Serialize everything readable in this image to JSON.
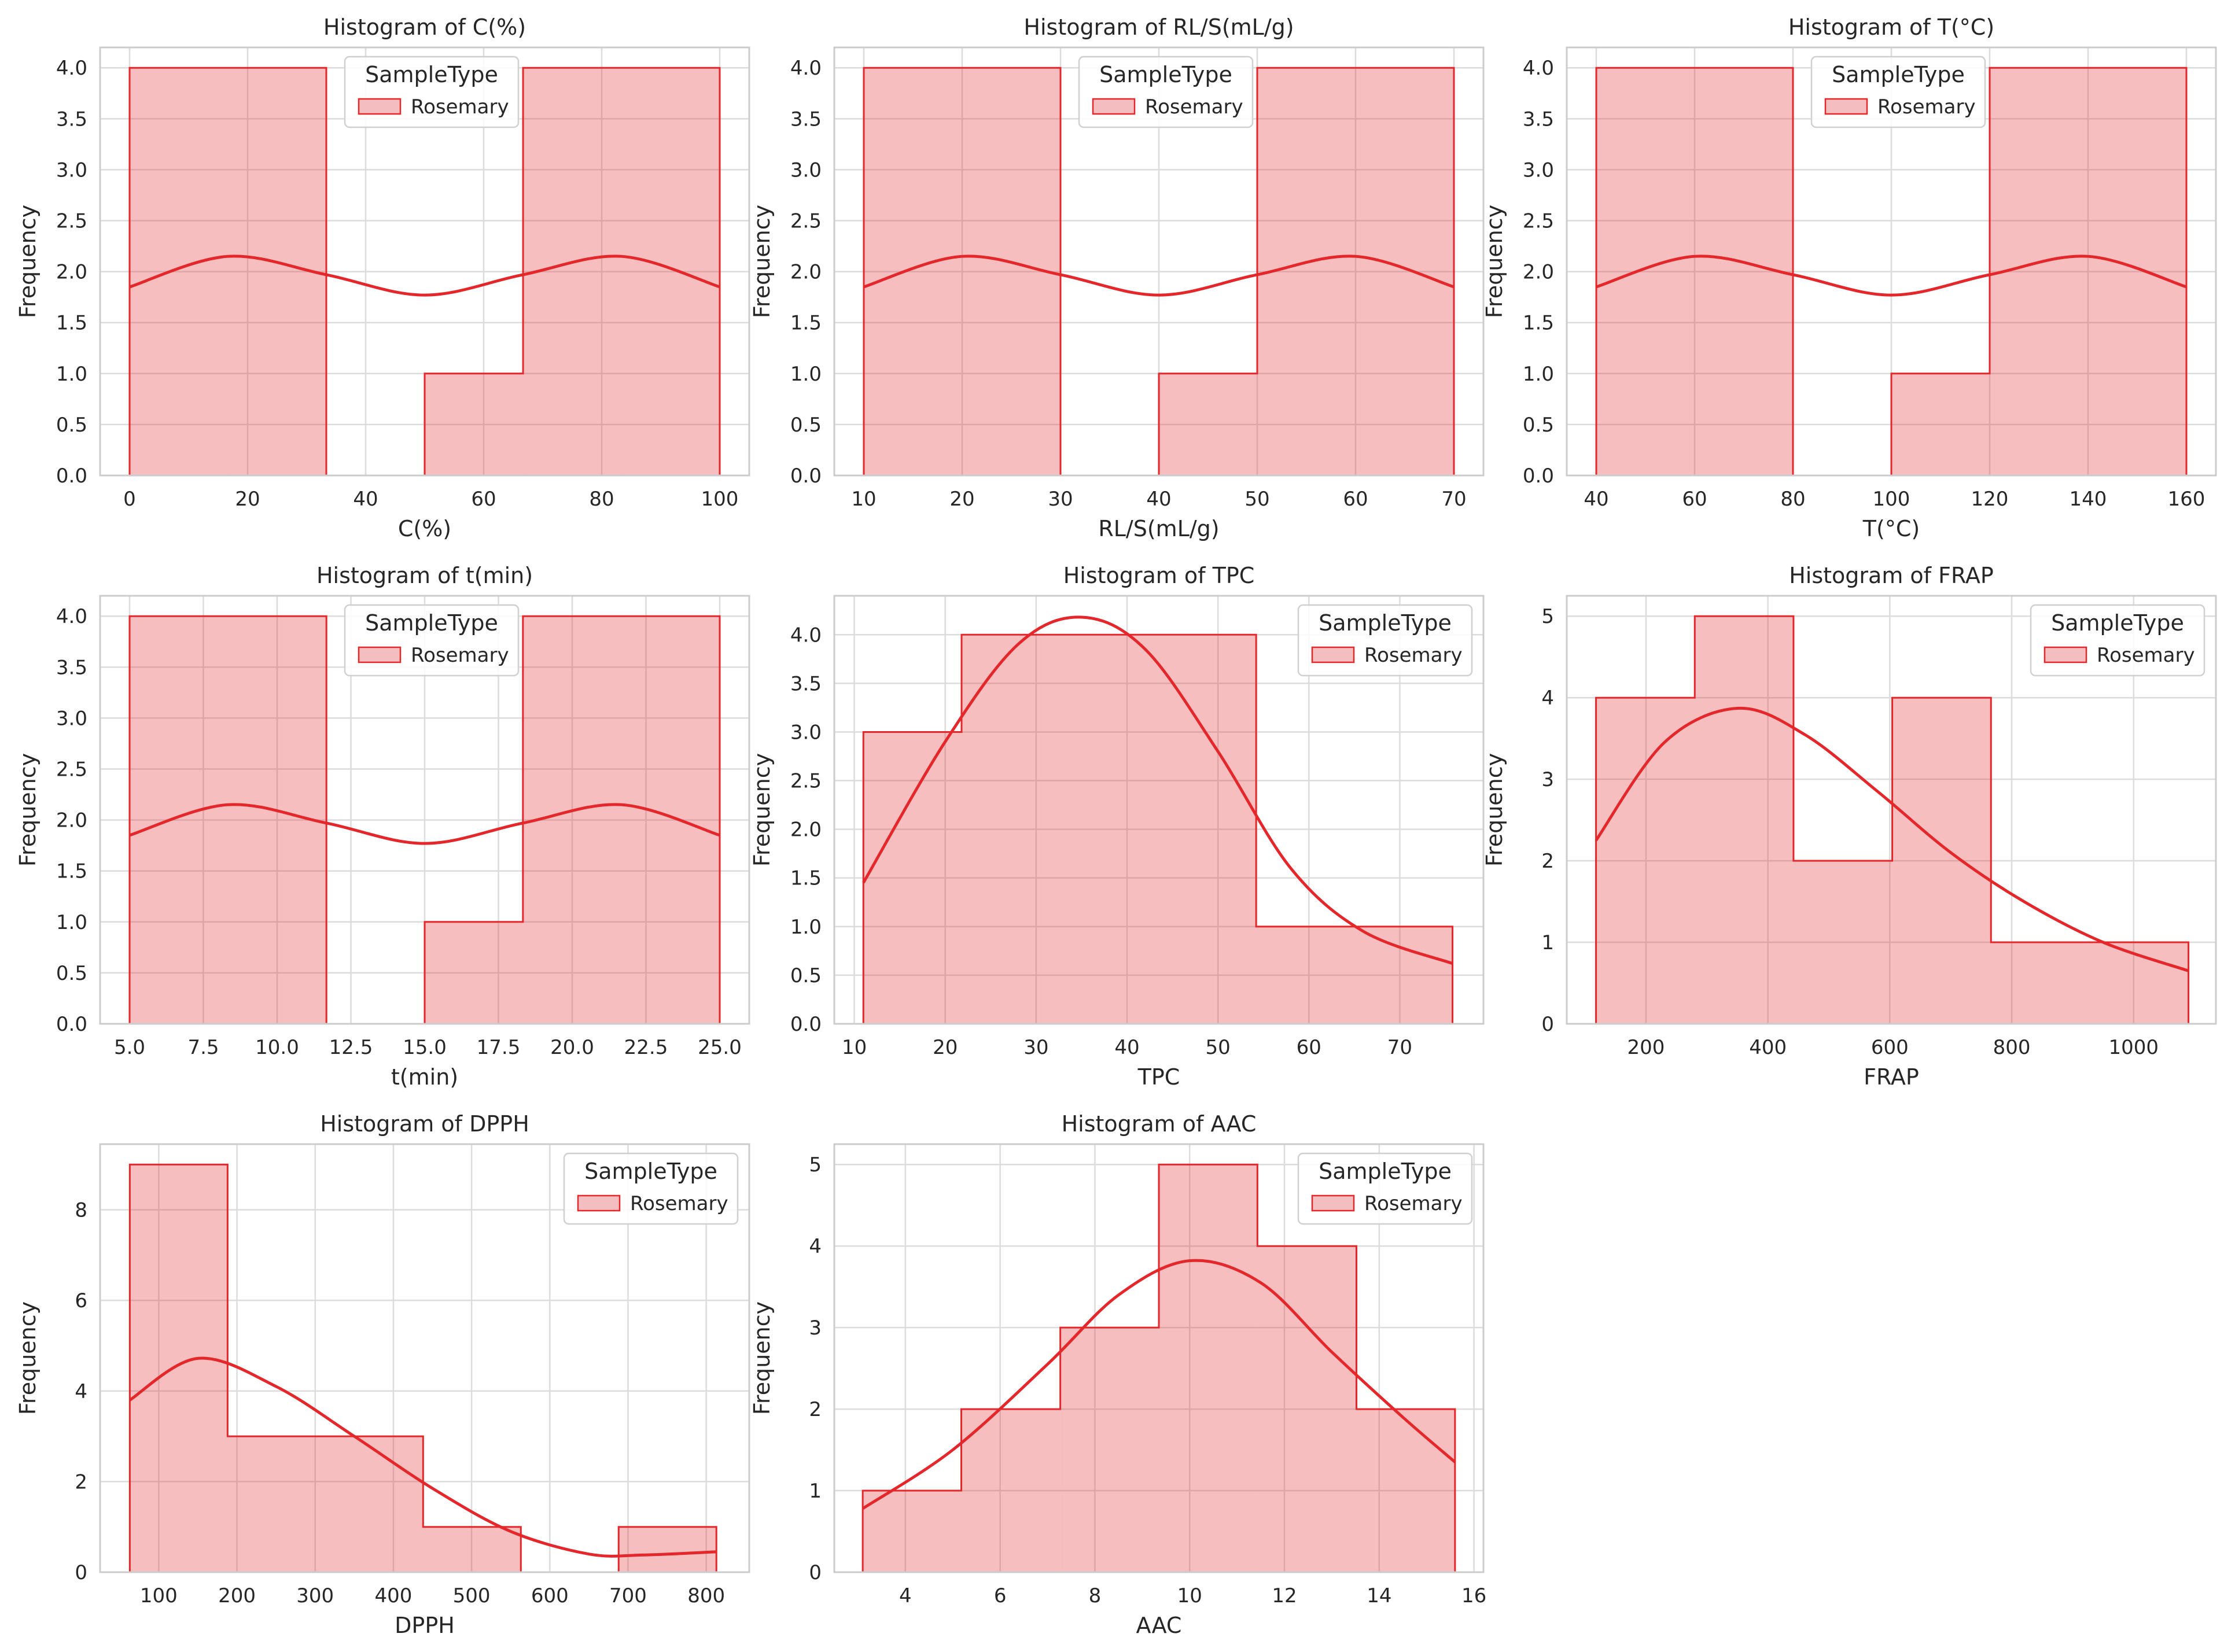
{
  "figure": {
    "rows": 3,
    "cols": 3,
    "background": "#ffffff"
  },
  "style": {
    "bar_fill": "#f4bdc0",
    "bar_edge": "#e3272b",
    "kde_color": "#e3272b",
    "grid_color": "#dcdcdc",
    "spine_color": "#cccccc",
    "text_color": "#262626"
  },
  "chart_data": [
    {
      "type": "bar",
      "title": "Histogram of C(%)",
      "xlabel": "C(%)",
      "ylabel": "Frequency",
      "legend": {
        "title": "SampleType",
        "entries": [
          "Rosemary"
        ],
        "placement": "top-center"
      },
      "xlim": [
        -5,
        105
      ],
      "xticks": [
        0,
        20,
        40,
        60,
        80,
        100
      ],
      "xtick_labels": [
        "0",
        "20",
        "40",
        "60",
        "80",
        "100"
      ],
      "ylim": [
        0,
        4.2
      ],
      "yticks": [
        0,
        0.5,
        1,
        1.5,
        2,
        2.5,
        3,
        3.5,
        4
      ],
      "ytick_labels": [
        "0.0",
        "0.5",
        "1.0",
        "1.5",
        "2.0",
        "2.5",
        "3.0",
        "3.5",
        "4.0"
      ],
      "bin_edges": [
        0,
        16.67,
        33.33,
        50,
        66.67,
        83.33,
        100
      ],
      "counts": [
        4,
        4,
        0,
        1,
        4,
        4
      ],
      "kde": {
        "x": [
          0,
          16.67,
          33.33,
          50,
          66.67,
          83.33,
          100
        ],
        "y": [
          1.85,
          2.15,
          1.97,
          1.77,
          1.97,
          2.15,
          1.85
        ]
      }
    },
    {
      "type": "bar",
      "title": "Histogram of RL/S(mL/g)",
      "xlabel": "RL/S(mL/g)",
      "ylabel": "Frequency",
      "legend": {
        "title": "SampleType",
        "entries": [
          "Rosemary"
        ],
        "placement": "top-center"
      },
      "xlim": [
        7,
        73
      ],
      "xticks": [
        10,
        20,
        30,
        40,
        50,
        60,
        70
      ],
      "xtick_labels": [
        "10",
        "20",
        "30",
        "40",
        "50",
        "60",
        "70"
      ],
      "ylim": [
        0,
        4.2
      ],
      "yticks": [
        0,
        0.5,
        1,
        1.5,
        2,
        2.5,
        3,
        3.5,
        4
      ],
      "ytick_labels": [
        "0.0",
        "0.5",
        "1.0",
        "1.5",
        "2.0",
        "2.5",
        "3.0",
        "3.5",
        "4.0"
      ],
      "bin_edges": [
        10,
        20,
        30,
        40,
        50,
        60,
        70
      ],
      "counts": [
        4,
        4,
        0,
        1,
        4,
        4
      ],
      "kde": {
        "x": [
          10,
          20,
          30,
          40,
          50,
          60,
          70
        ],
        "y": [
          1.85,
          2.15,
          1.97,
          1.77,
          1.97,
          2.15,
          1.85
        ]
      }
    },
    {
      "type": "bar",
      "title": "Histogram of T(°C)",
      "xlabel": "T(°C)",
      "ylabel": "Frequency",
      "legend": {
        "title": "SampleType",
        "entries": [
          "Rosemary"
        ],
        "placement": "top-center"
      },
      "xlim": [
        34,
        166
      ],
      "xticks": [
        40,
        60,
        80,
        100,
        120,
        140,
        160
      ],
      "xtick_labels": [
        "40",
        "60",
        "80",
        "100",
        "120",
        "140",
        "160"
      ],
      "ylim": [
        0,
        4.2
      ],
      "yticks": [
        0,
        0.5,
        1,
        1.5,
        2,
        2.5,
        3,
        3.5,
        4
      ],
      "ytick_labels": [
        "0.0",
        "0.5",
        "1.0",
        "1.5",
        "2.0",
        "2.5",
        "3.0",
        "3.5",
        "4.0"
      ],
      "bin_edges": [
        40,
        60,
        80,
        100,
        120,
        140,
        160
      ],
      "counts": [
        4,
        4,
        0,
        1,
        4,
        4
      ],
      "kde": {
        "x": [
          40,
          60,
          80,
          100,
          120,
          140,
          160
        ],
        "y": [
          1.85,
          2.15,
          1.97,
          1.77,
          1.97,
          2.15,
          1.85
        ]
      }
    },
    {
      "type": "bar",
      "title": "Histogram of t(min)",
      "xlabel": "t(min)",
      "ylabel": "Frequency",
      "legend": {
        "title": "SampleType",
        "entries": [
          "Rosemary"
        ],
        "placement": "top-center"
      },
      "xlim": [
        4,
        26
      ],
      "xticks": [
        5,
        7.5,
        10,
        12.5,
        15,
        17.5,
        20,
        22.5,
        25
      ],
      "xtick_labels": [
        "5.0",
        "7.5",
        "10.0",
        "12.5",
        "15.0",
        "17.5",
        "20.0",
        "22.5",
        "25.0"
      ],
      "ylim": [
        0,
        4.2
      ],
      "yticks": [
        0,
        0.5,
        1,
        1.5,
        2,
        2.5,
        3,
        3.5,
        4
      ],
      "ytick_labels": [
        "0.0",
        "0.5",
        "1.0",
        "1.5",
        "2.0",
        "2.5",
        "3.0",
        "3.5",
        "4.0"
      ],
      "bin_edges": [
        5,
        8.33,
        11.67,
        15,
        18.33,
        21.67,
        25
      ],
      "counts": [
        4,
        4,
        0,
        1,
        4,
        4
      ],
      "kde": {
        "x": [
          5,
          8.33,
          11.67,
          15,
          18.33,
          21.67,
          25
        ],
        "y": [
          1.85,
          2.15,
          1.97,
          1.77,
          1.97,
          2.15,
          1.85
        ]
      }
    },
    {
      "type": "bar",
      "title": "Histogram of TPC",
      "xlabel": "TPC",
      "ylabel": "Frequency",
      "legend": {
        "title": "SampleType",
        "entries": [
          "Rosemary"
        ],
        "placement": "top-right"
      },
      "xlim": [
        7.8,
        79.2
      ],
      "xticks": [
        10,
        20,
        30,
        40,
        50,
        60,
        70
      ],
      "xtick_labels": [
        "10",
        "20",
        "30",
        "40",
        "50",
        "60",
        "70"
      ],
      "ylim": [
        0,
        4.4
      ],
      "yticks": [
        0,
        0.5,
        1,
        1.5,
        2,
        2.5,
        3,
        3.5,
        4
      ],
      "ytick_labels": [
        "0.0",
        "0.5",
        "1.0",
        "1.5",
        "2.0",
        "2.5",
        "3.0",
        "3.5",
        "4.0"
      ],
      "bin_edges": [
        11.0,
        21.8,
        32.6,
        43.4,
        54.2,
        65.0,
        75.8
      ],
      "counts": [
        3,
        4,
        4,
        4,
        1,
        1
      ],
      "kde": {
        "x": [
          11,
          20,
          28,
          35,
          42,
          50,
          58,
          66,
          75.8
        ],
        "y": [
          1.45,
          2.9,
          3.9,
          4.18,
          3.85,
          2.8,
          1.6,
          0.95,
          0.62
        ]
      }
    },
    {
      "type": "bar",
      "title": "Histogram of FRAP",
      "xlabel": "FRAP",
      "ylabel": "Frequency",
      "legend": {
        "title": "SampleType",
        "entries": [
          "Rosemary"
        ],
        "placement": "top-right"
      },
      "xlim": [
        70,
        1135
      ],
      "xticks": [
        200,
        400,
        600,
        800,
        1000
      ],
      "xtick_labels": [
        "200",
        "400",
        "600",
        "800",
        "1000"
      ],
      "ylim": [
        0,
        5.25
      ],
      "yticks": [
        0,
        1,
        2,
        3,
        4,
        5
      ],
      "ytick_labels": [
        "0",
        "1",
        "2",
        "3",
        "4",
        "5"
      ],
      "bin_edges": [
        118,
        280,
        442,
        604,
        766,
        928,
        1090
      ],
      "counts": [
        4,
        5,
        2,
        4,
        1,
        1
      ],
      "kde": {
        "x": [
          118,
          230,
          350,
          460,
          580,
          700,
          820,
          950,
          1090
        ],
        "y": [
          2.25,
          3.45,
          3.87,
          3.55,
          2.85,
          2.1,
          1.5,
          1.0,
          0.65
        ]
      }
    },
    {
      "type": "bar",
      "title": "Histogram of DPPH",
      "xlabel": "DPPH",
      "ylabel": "Frequency",
      "legend": {
        "title": "SampleType",
        "entries": [
          "Rosemary"
        ],
        "placement": "top-right"
      },
      "xlim": [
        25,
        855
      ],
      "xticks": [
        100,
        200,
        300,
        400,
        500,
        600,
        700,
        800
      ],
      "xtick_labels": [
        "100",
        "200",
        "300",
        "400",
        "500",
        "600",
        "700",
        "800"
      ],
      "ylim": [
        0,
        9.45
      ],
      "yticks": [
        0,
        2,
        4,
        6,
        8
      ],
      "ytick_labels": [
        "0",
        "2",
        "4",
        "6",
        "8"
      ],
      "bin_edges": [
        63,
        188,
        313,
        438,
        563,
        688,
        813
      ],
      "counts": [
        9,
        3,
        3,
        1,
        0,
        1
      ],
      "kde": {
        "x": [
          63,
          150,
          250,
          350,
          450,
          550,
          650,
          720,
          813
        ],
        "y": [
          3.8,
          4.72,
          4.1,
          3.0,
          1.85,
          0.9,
          0.4,
          0.38,
          0.45
        ]
      }
    },
    {
      "type": "bar",
      "title": "Histogram of AAC",
      "xlabel": "AAC",
      "ylabel": "Frequency",
      "legend": {
        "title": "SampleType",
        "entries": [
          "Rosemary"
        ],
        "placement": "top-right"
      },
      "xlim": [
        2.5,
        16.2
      ],
      "xticks": [
        4,
        6,
        8,
        10,
        12,
        14,
        16
      ],
      "xtick_labels": [
        "4",
        "6",
        "8",
        "10",
        "12",
        "14",
        "16"
      ],
      "ylim": [
        0,
        5.25
      ],
      "yticks": [
        0,
        1,
        2,
        3,
        4,
        5
      ],
      "ytick_labels": [
        "0",
        "1",
        "2",
        "3",
        "4",
        "5"
      ],
      "bin_edges": [
        3.1,
        5.18,
        7.27,
        9.35,
        11.43,
        13.52,
        15.6
      ],
      "counts": [
        1,
        2,
        3,
        5,
        4,
        2
      ],
      "kde": {
        "x": [
          3.1,
          5,
          7,
          8.5,
          10,
          11.5,
          13,
          14.5,
          15.6
        ],
        "y": [
          0.78,
          1.5,
          2.55,
          3.4,
          3.82,
          3.55,
          2.7,
          1.9,
          1.35
        ]
      }
    }
  ]
}
